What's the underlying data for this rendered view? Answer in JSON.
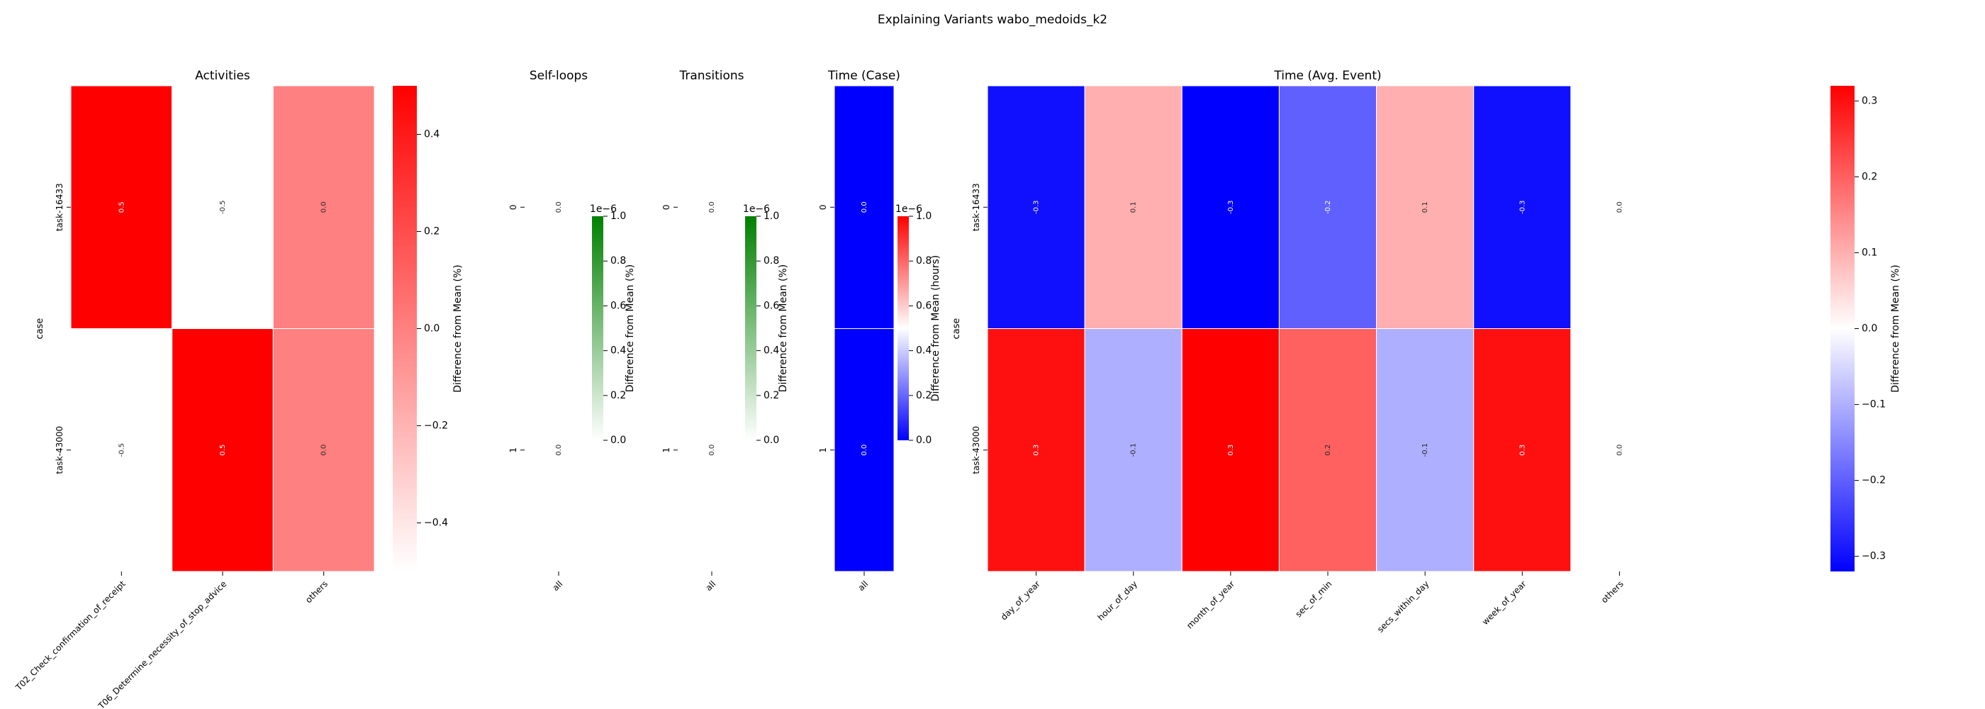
{
  "figure_title": "Explaining Variants wabo_medoids_k2",
  "colors": {
    "blue": "#0000ff",
    "white": "#ffffff",
    "red": "#ff0000",
    "green": "#008000"
  },
  "chart_data": [
    {
      "type": "heatmap",
      "title": "Activities",
      "ylabel": "case",
      "rows": [
        "task-16433",
        "task-43000"
      ],
      "columns": [
        "T02_Check_confirmation_of_receipt",
        "T06_Determine_necessity_of_stop_advice",
        "others"
      ],
      "values": [
        [
          0.5,
          -0.5,
          0.0
        ],
        [
          -0.5,
          0.5,
          0.0
        ]
      ],
      "annotations": [
        [
          "0.5",
          "-0.5",
          "0.0"
        ],
        [
          "-0.5",
          "0.5",
          "0.0"
        ]
      ],
      "colormap": "white-red",
      "vmin": -0.5,
      "vmax": 0.5,
      "colorbar": {
        "label": "Difference from Mean (%)",
        "ticks": [
          "0.4",
          "0.2",
          "0.0",
          "−0.2",
          "−0.4"
        ],
        "tick_values": [
          0.4,
          0.2,
          0.0,
          -0.2,
          -0.4
        ]
      }
    },
    {
      "type": "heatmap",
      "title": "Self-loops",
      "rows": [
        "0",
        "1"
      ],
      "columns": [
        "all"
      ],
      "values": [
        [
          0.0
        ],
        [
          0.0
        ]
      ],
      "annotations": [
        [
          "0.0"
        ],
        [
          "0.0"
        ]
      ],
      "colormap": "white-green",
      "vmin": 0,
      "vmax": 1,
      "colorbar": {
        "label": "Difference from Mean (%)",
        "exponent": "1e−6",
        "ticks": [
          "1.0",
          "0.8",
          "0.6",
          "0.4",
          "0.2",
          "0.0"
        ],
        "tick_values": [
          1.0,
          0.8,
          0.6,
          0.4,
          0.2,
          0.0
        ]
      }
    },
    {
      "type": "heatmap",
      "title": "Transitions",
      "rows": [
        "0",
        "1"
      ],
      "columns": [
        "all"
      ],
      "values": [
        [
          0.0
        ],
        [
          0.0
        ]
      ],
      "annotations": [
        [
          "0.0"
        ],
        [
          "0.0"
        ]
      ],
      "colormap": "white-green",
      "vmin": 0,
      "vmax": 1,
      "colorbar": {
        "label": "Difference from Mean (%)",
        "exponent": "1e−6",
        "ticks": [
          "1.0",
          "0.8",
          "0.6",
          "0.4",
          "0.2",
          "0.0"
        ],
        "tick_values": [
          1.0,
          0.8,
          0.6,
          0.4,
          0.2,
          0.0
        ]
      }
    },
    {
      "type": "heatmap",
      "title": "Time (Case)",
      "rows": [
        "0",
        "1"
      ],
      "columns": [
        "all"
      ],
      "values": [
        [
          0.0
        ],
        [
          0.0
        ]
      ],
      "annotations": [
        [
          "0.0"
        ],
        [
          "0.0"
        ]
      ],
      "colormap": "blue-white-red",
      "vmin": 0,
      "vmax": 1,
      "colorbar": {
        "label": "Difference from Mean (hours)",
        "exponent": "1e−6",
        "ticks": [
          "1.0",
          "0.8",
          "0.6",
          "0.4",
          "0.2",
          "0.0"
        ],
        "tick_values": [
          1.0,
          0.8,
          0.6,
          0.4,
          0.2,
          0.0
        ]
      }
    },
    {
      "type": "heatmap",
      "title": "Time (Avg. Event)",
      "ylabel": "case",
      "rows": [
        "task-16433",
        "task-43000"
      ],
      "columns": [
        "day_of_year",
        "hour_of_day",
        "month_of_year",
        "sec_of_min",
        "secs_within_day",
        "week_of_year",
        "others"
      ],
      "values": [
        [
          -0.3,
          0.1,
          -0.32,
          -0.2,
          0.1,
          -0.3,
          0.0
        ],
        [
          0.3,
          -0.1,
          0.32,
          0.2,
          -0.1,
          0.3,
          0.0
        ]
      ],
      "annotations": [
        [
          "-0.3",
          "0.1",
          "-0.3",
          "-0.2",
          "0.1",
          "-0.3",
          "0.0"
        ],
        [
          "0.3",
          "-0.1",
          "0.3",
          "0.2",
          "-0.1",
          "0.3",
          "0.0"
        ]
      ],
      "colormap": "blue-white-red",
      "vmin": -0.32,
      "vmax": 0.32,
      "colorbar": {
        "label": "Difference from Mean (%)",
        "ticks": [
          "0.3",
          "0.2",
          "0.1",
          "0.0",
          "−0.1",
          "−0.2",
          "−0.3"
        ],
        "tick_values": [
          0.3,
          0.2,
          0.1,
          0.0,
          -0.1,
          -0.2,
          -0.3
        ]
      }
    }
  ]
}
